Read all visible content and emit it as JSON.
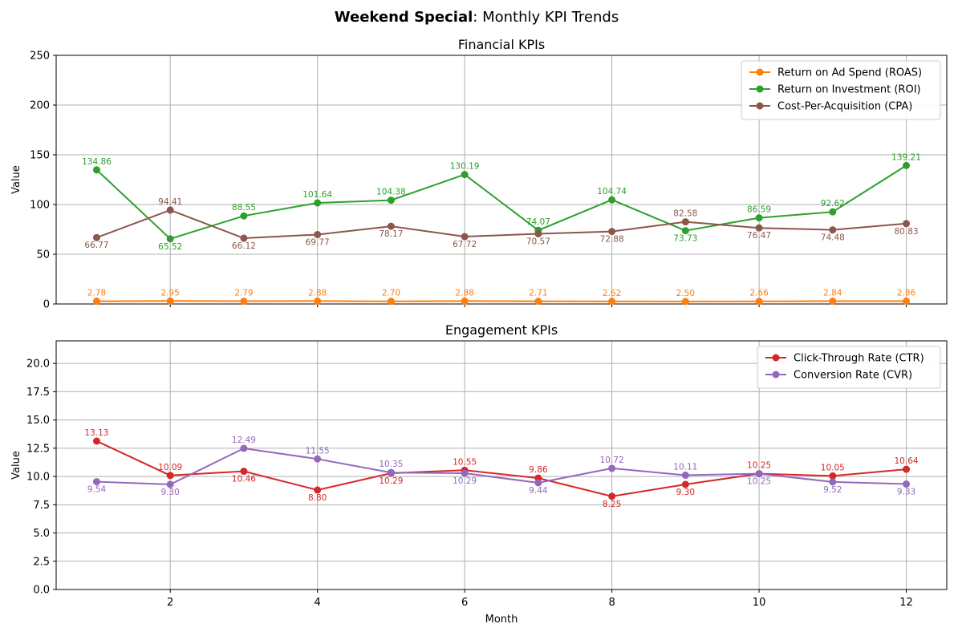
{
  "figure": {
    "title_bold": "Weekend Special",
    "title_rest": ": Monthly KPI Trends",
    "xlabel": "Month"
  },
  "chart_data": [
    {
      "type": "line",
      "title": "Financial KPIs",
      "xlabel": "",
      "ylabel": "Value",
      "xlim": [
        0.45,
        12.55
      ],
      "ylim": [
        0,
        250
      ],
      "yticks": [
        "0",
        "50",
        "100",
        "150",
        "200",
        "250"
      ],
      "xticks": [
        2,
        4,
        6,
        8,
        10,
        12
      ],
      "grid": true,
      "legend_position": "top-right",
      "x": [
        1,
        2,
        3,
        4,
        5,
        6,
        7,
        8,
        9,
        10,
        11,
        12
      ],
      "series": [
        {
          "name": "Return on Ad Spend (ROAS)",
          "color": "#ff7f0e",
          "values": [
            2.78,
            2.95,
            2.79,
            2.88,
            2.7,
            2.88,
            2.71,
            2.62,
            2.5,
            2.66,
            2.84,
            2.86
          ],
          "labels": [
            "2.78",
            "2.95",
            "2.79",
            "2.88",
            "2.70",
            "2.88",
            "2.71",
            "2.62",
            "2.50",
            "2.66",
            "2.84",
            "2.86"
          ],
          "label_pos": [
            "above",
            "above",
            "above",
            "above",
            "above",
            "above",
            "above",
            "above",
            "above",
            "above",
            "above",
            "above"
          ]
        },
        {
          "name": "Return on Investment (ROI)",
          "color": "#2ca02c",
          "values": [
            134.86,
            65.52,
            88.55,
            101.64,
            104.38,
            130.19,
            74.07,
            104.74,
            73.73,
            86.59,
            92.62,
            139.21
          ],
          "labels": [
            "134.86",
            "65.52",
            "88.55",
            "101.64",
            "104.38",
            "130.19",
            "74.07",
            "104.74",
            "73.73",
            "86.59",
            "92.62",
            "139.21"
          ],
          "label_pos": [
            "above",
            "below",
            "above",
            "above",
            "above",
            "above",
            "above",
            "above",
            "below",
            "above",
            "above",
            "above"
          ]
        },
        {
          "name": "Cost-Per-Acquisition (CPA)",
          "color": "#8c564b",
          "values": [
            66.77,
            94.41,
            66.12,
            69.77,
            78.17,
            67.72,
            70.57,
            72.88,
            82.58,
            76.47,
            74.48,
            80.83
          ],
          "labels": [
            "66.77",
            "94.41",
            "66.12",
            "69.77",
            "78.17",
            "67.72",
            "70.57",
            "72.88",
            "82.58",
            "76.47",
            "74.48",
            "80.83"
          ],
          "label_pos": [
            "below",
            "above",
            "below",
            "below",
            "below",
            "below",
            "below",
            "below",
            "above",
            "below",
            "below",
            "below"
          ]
        }
      ]
    },
    {
      "type": "line",
      "title": "Engagement KPIs",
      "xlabel": "Month",
      "ylabel": "Value",
      "xlim": [
        0.45,
        12.55
      ],
      "ylim": [
        0,
        22
      ],
      "yticks": [
        "0.0",
        "2.5",
        "5.0",
        "7.5",
        "10.0",
        "12.5",
        "15.0",
        "17.5",
        "20.0"
      ],
      "xticks": [
        2,
        4,
        6,
        8,
        10,
        12
      ],
      "grid": true,
      "legend_position": "top-right",
      "x": [
        1,
        2,
        3,
        4,
        5,
        6,
        7,
        8,
        9,
        10,
        11,
        12
      ],
      "series": [
        {
          "name": "Click-Through Rate (CTR)",
          "color": "#d62728",
          "values": [
            13.13,
            10.09,
            10.46,
            8.8,
            10.29,
            10.55,
            9.86,
            8.25,
            9.3,
            10.25,
            10.05,
            10.64
          ],
          "labels": [
            "13.13",
            "10.09",
            "10.46",
            "8.80",
            "10.29",
            "10.55",
            "9.86",
            "8.25",
            "9.30",
            "10.25",
            "10.05",
            "10.64"
          ],
          "label_pos": [
            "above",
            "above",
            "below",
            "below",
            "below",
            "above",
            "above",
            "below",
            "below",
            "above",
            "above",
            "above"
          ]
        },
        {
          "name": "Conversion Rate (CVR)",
          "color": "#9467bd",
          "values": [
            9.54,
            9.3,
            12.49,
            11.55,
            10.35,
            10.29,
            9.44,
            10.72,
            10.11,
            10.25,
            9.52,
            9.33
          ],
          "labels": [
            "9.54",
            "9.30",
            "12.49",
            "11.55",
            "10.35",
            "10.29",
            "9.44",
            "10.72",
            "10.11",
            "10.25",
            "9.52",
            "9.33"
          ],
          "label_pos": [
            "below",
            "below",
            "above",
            "above",
            "above",
            "below",
            "below",
            "above",
            "above",
            "below",
            "below",
            "below"
          ]
        }
      ]
    }
  ]
}
